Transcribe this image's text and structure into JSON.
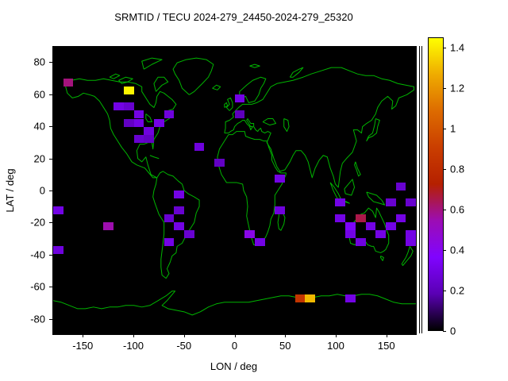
{
  "chart_data": {
    "type": "heatmap",
    "title": "SRMTID / TECU 2024-279_24450-2024-279_25320",
    "xlabel": "LON / deg",
    "ylabel": "LAT / deg",
    "xlim": [
      -180,
      180
    ],
    "ylim": [
      -90,
      90
    ],
    "x_ticks": [
      -150,
      -100,
      -50,
      0,
      50,
      100,
      150
    ],
    "y_ticks": [
      80,
      60,
      40,
      20,
      0,
      -20,
      -40,
      -60,
      -80
    ],
    "grid": false,
    "plot_bg": "#000000",
    "coastline_color": "#00b400",
    "cell_size": {
      "lon": 10,
      "lat": 5
    },
    "colorbar": {
      "range": [
        0,
        1.45
      ],
      "ticks": [
        {
          "v": 0,
          "label": "0"
        },
        {
          "v": 0.2,
          "label": "0.2"
        },
        {
          "v": 0.4,
          "label": "0.4"
        },
        {
          "v": 0.6,
          "label": "0.6"
        },
        {
          "v": 0.8,
          "label": "0.8"
        },
        {
          "v": 1,
          "label": "1"
        },
        {
          "v": 1.2,
          "label": "1.2"
        },
        {
          "v": 1.4,
          "label": "1.4"
        }
      ]
    },
    "palette": [
      {
        "x": 0,
        "color": "#000000"
      },
      {
        "x": 0.125,
        "color": "#5a00b4"
      },
      {
        "x": 0.25,
        "color": "#8004ff"
      },
      {
        "x": 0.375,
        "color": "#9c0db4"
      },
      {
        "x": 0.5,
        "color": "#b52000"
      },
      {
        "x": 0.625,
        "color": "#ca3e00"
      },
      {
        "x": 0.75,
        "color": "#dd6b00"
      },
      {
        "x": 0.875,
        "color": "#efab00"
      },
      {
        "x": 1,
        "color": "#ffff00"
      }
    ],
    "points": [
      {
        "lon": -170,
        "lat": 65,
        "v": 0.6
      },
      {
        "lon": -110,
        "lat": 60,
        "v": 1.43
      },
      {
        "lon": -120,
        "lat": 50,
        "v": 0.3
      },
      {
        "lon": -110,
        "lat": 50,
        "v": 0.25
      },
      {
        "lon": -100,
        "lat": 45,
        "v": 0.3
      },
      {
        "lon": -110,
        "lat": 40,
        "v": 0.22
      },
      {
        "lon": -100,
        "lat": 40,
        "v": 0.3
      },
      {
        "lon": -90,
        "lat": 35,
        "v": 0.28
      },
      {
        "lon": -100,
        "lat": 30,
        "v": 0.25
      },
      {
        "lon": -90,
        "lat": 30,
        "v": 0.22
      },
      {
        "lon": -80,
        "lat": 40,
        "v": 0.3
      },
      {
        "lon": -70,
        "lat": 45,
        "v": 0.28
      },
      {
        "lon": 0,
        "lat": 55,
        "v": 0.3
      },
      {
        "lon": 0,
        "lat": 45,
        "v": 0.2
      },
      {
        "lon": -40,
        "lat": 25,
        "v": 0.28
      },
      {
        "lon": -20,
        "lat": 15,
        "v": 0.22
      },
      {
        "lon": 40,
        "lat": 5,
        "v": 0.3
      },
      {
        "lon": 40,
        "lat": -15,
        "v": 0.28
      },
      {
        "lon": 10,
        "lat": -30,
        "v": 0.42
      },
      {
        "lon": 20,
        "lat": -35,
        "v": 0.3
      },
      {
        "lon": -60,
        "lat": -5,
        "v": 0.3
      },
      {
        "lon": -60,
        "lat": -15,
        "v": 0.25
      },
      {
        "lon": -60,
        "lat": -25,
        "v": 0.3
      },
      {
        "lon": -50,
        "lat": -30,
        "v": 0.25
      },
      {
        "lon": -70,
        "lat": -35,
        "v": 0.3
      },
      {
        "lon": -70,
        "lat": -20,
        "v": 0.25
      },
      {
        "lon": -180,
        "lat": -15,
        "v": 0.3
      },
      {
        "lon": -130,
        "lat": -25,
        "v": 0.55
      },
      {
        "lon": -180,
        "lat": -40,
        "v": 0.28
      },
      {
        "lon": 100,
        "lat": -10,
        "v": 0.3
      },
      {
        "lon": 100,
        "lat": -20,
        "v": 0.3
      },
      {
        "lon": 110,
        "lat": -25,
        "v": 0.35
      },
      {
        "lon": 120,
        "lat": -20,
        "v": 0.65
      },
      {
        "lon": 130,
        "lat": -25,
        "v": 0.3
      },
      {
        "lon": 140,
        "lat": -30,
        "v": 0.3
      },
      {
        "lon": 150,
        "lat": -25,
        "v": 0.3
      },
      {
        "lon": 160,
        "lat": -20,
        "v": 0.3
      },
      {
        "lon": 150,
        "lat": -10,
        "v": 0.25
      },
      {
        "lon": 170,
        "lat": -35,
        "v": 0.3
      },
      {
        "lon": 170,
        "lat": -10,
        "v": 0.25
      },
      {
        "lon": 160,
        "lat": 0,
        "v": 0.25
      },
      {
        "lon": 110,
        "lat": -30,
        "v": 0.3
      },
      {
        "lon": 120,
        "lat": -35,
        "v": 0.28
      },
      {
        "lon": 170,
        "lat": -30,
        "v": 0.3
      },
      {
        "lon": 60,
        "lat": -70,
        "v": 0.85
      },
      {
        "lon": 70,
        "lat": -70,
        "v": 1.3
      },
      {
        "lon": 110,
        "lat": -70,
        "v": 0.3
      }
    ]
  }
}
